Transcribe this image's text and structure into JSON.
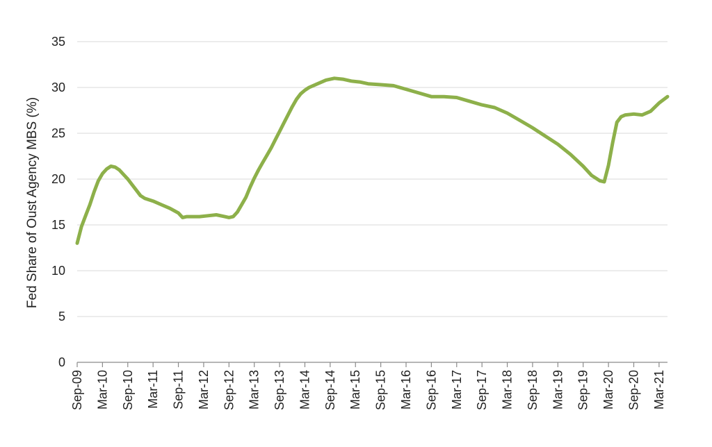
{
  "chart_data": {
    "type": "line",
    "title": "",
    "xlabel": "",
    "ylabel": "Fed Share of Oust Agency MBS (%)",
    "ylim": [
      0,
      35
    ],
    "y_ticks": [
      "0",
      "5",
      "10",
      "15",
      "20",
      "25",
      "30",
      "35"
    ],
    "x_ticks": [
      "Sep-09",
      "Mar-10",
      "Sep-10",
      "Mar-11",
      "Sep-11",
      "Mar-12",
      "Sep-12",
      "Mar-13",
      "Sep-13",
      "Mar-14",
      "Sep-14",
      "Mar-15",
      "Sep-15",
      "Mar-16",
      "Sep-16",
      "Mar-17",
      "Sep-17",
      "Mar-18",
      "Sep-18",
      "Mar-19",
      "Sep-19",
      "Mar-20",
      "Sep-20",
      "Mar-21"
    ],
    "x_range": [
      "2009-09",
      "2021-05"
    ],
    "grid": "horizontal",
    "legend": "none",
    "colors": {
      "line": "#8db04a",
      "grid": "#d9d9d9",
      "axis": "#8a8a8a"
    },
    "series": [
      {
        "x": [
          "2009-09",
          "2009-10",
          "2009-11",
          "2009-12",
          "2010-01",
          "2010-02",
          "2010-03",
          "2010-04",
          "2010-05",
          "2010-06",
          "2010-07",
          "2010-08",
          "2010-09",
          "2010-10",
          "2010-11",
          "2010-12",
          "2011-01",
          "2011-03",
          "2011-05",
          "2011-07",
          "2011-09",
          "2011-10",
          "2011-11",
          "2011-12",
          "2012-02",
          "2012-04",
          "2012-06",
          "2012-08",
          "2012-09",
          "2012-10",
          "2012-11",
          "2012-12",
          "2013-01",
          "2013-02",
          "2013-03",
          "2013-04",
          "2013-05",
          "2013-06",
          "2013-07",
          "2013-08",
          "2013-09",
          "2013-10",
          "2013-11",
          "2013-12",
          "2014-01",
          "2014-02",
          "2014-03",
          "2014-04",
          "2014-06",
          "2014-08",
          "2014-10",
          "2014-12",
          "2015-02",
          "2015-04",
          "2015-06",
          "2015-09",
          "2015-12",
          "2016-03",
          "2016-06",
          "2016-09",
          "2016-12",
          "2017-03",
          "2017-06",
          "2017-09",
          "2017-12",
          "2018-03",
          "2018-06",
          "2018-09",
          "2018-12",
          "2019-03",
          "2019-06",
          "2019-09",
          "2019-11",
          "2020-01",
          "2020-02",
          "2020-03",
          "2020-04",
          "2020-05",
          "2020-06",
          "2020-07",
          "2020-09",
          "2020-11",
          "2021-01",
          "2021-03",
          "2021-05"
        ],
        "values": [
          13.0,
          14.8,
          16.0,
          17.2,
          18.6,
          19.8,
          20.6,
          21.1,
          21.4,
          21.3,
          21.0,
          20.5,
          20.0,
          19.4,
          18.8,
          18.2,
          17.9,
          17.6,
          17.2,
          16.8,
          16.3,
          15.8,
          15.9,
          15.9,
          15.9,
          16.0,
          16.1,
          15.9,
          15.8,
          15.9,
          16.4,
          17.2,
          18.0,
          19.1,
          20.1,
          21.0,
          21.8,
          22.6,
          23.4,
          24.3,
          25.2,
          26.1,
          27.0,
          27.9,
          28.7,
          29.3,
          29.7,
          30.0,
          30.4,
          30.8,
          31.0,
          30.9,
          30.7,
          30.6,
          30.4,
          30.3,
          30.2,
          29.8,
          29.4,
          29.0,
          29.0,
          28.9,
          28.5,
          28.1,
          27.8,
          27.2,
          26.4,
          25.6,
          24.7,
          23.8,
          22.7,
          21.4,
          20.4,
          19.8,
          19.7,
          21.5,
          24.0,
          26.2,
          26.8,
          27.0,
          27.1,
          27.0,
          27.4,
          28.3,
          29.0
        ]
      }
    ]
  }
}
